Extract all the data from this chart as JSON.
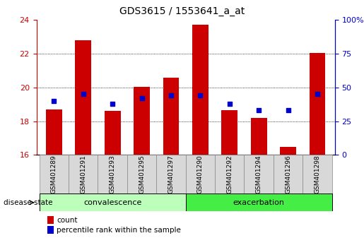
{
  "title": "GDS3615 / 1553641_a_at",
  "samples": [
    "GSM401289",
    "GSM401291",
    "GSM401293",
    "GSM401295",
    "GSM401297",
    "GSM401290",
    "GSM401292",
    "GSM401294",
    "GSM401296",
    "GSM401298"
  ],
  "red_values": [
    18.7,
    22.8,
    18.6,
    20.05,
    20.6,
    23.7,
    18.65,
    18.2,
    16.5,
    22.05
  ],
  "blue_percentile": [
    40,
    45,
    38,
    42,
    44,
    44,
    38,
    33,
    33,
    45
  ],
  "ylim_left": [
    16,
    24
  ],
  "ylim_right": [
    0,
    100
  ],
  "yticks_left": [
    16,
    18,
    20,
    22,
    24
  ],
  "yticks_right": [
    0,
    25,
    50,
    75,
    100
  ],
  "group_labels": [
    "convalescence",
    "exacerbation"
  ],
  "conv_color": "#bbffbb",
  "exac_color": "#44ee44",
  "bar_color": "#cc0000",
  "dot_color": "#0000cc",
  "background_color": "#ffffff",
  "tick_label_color_left": "#cc0000",
  "tick_label_color_right": "#0000cc",
  "bar_width": 0.55,
  "disease_state_label": "disease state",
  "legend_items": [
    "count",
    "percentile rank within the sample"
  ]
}
